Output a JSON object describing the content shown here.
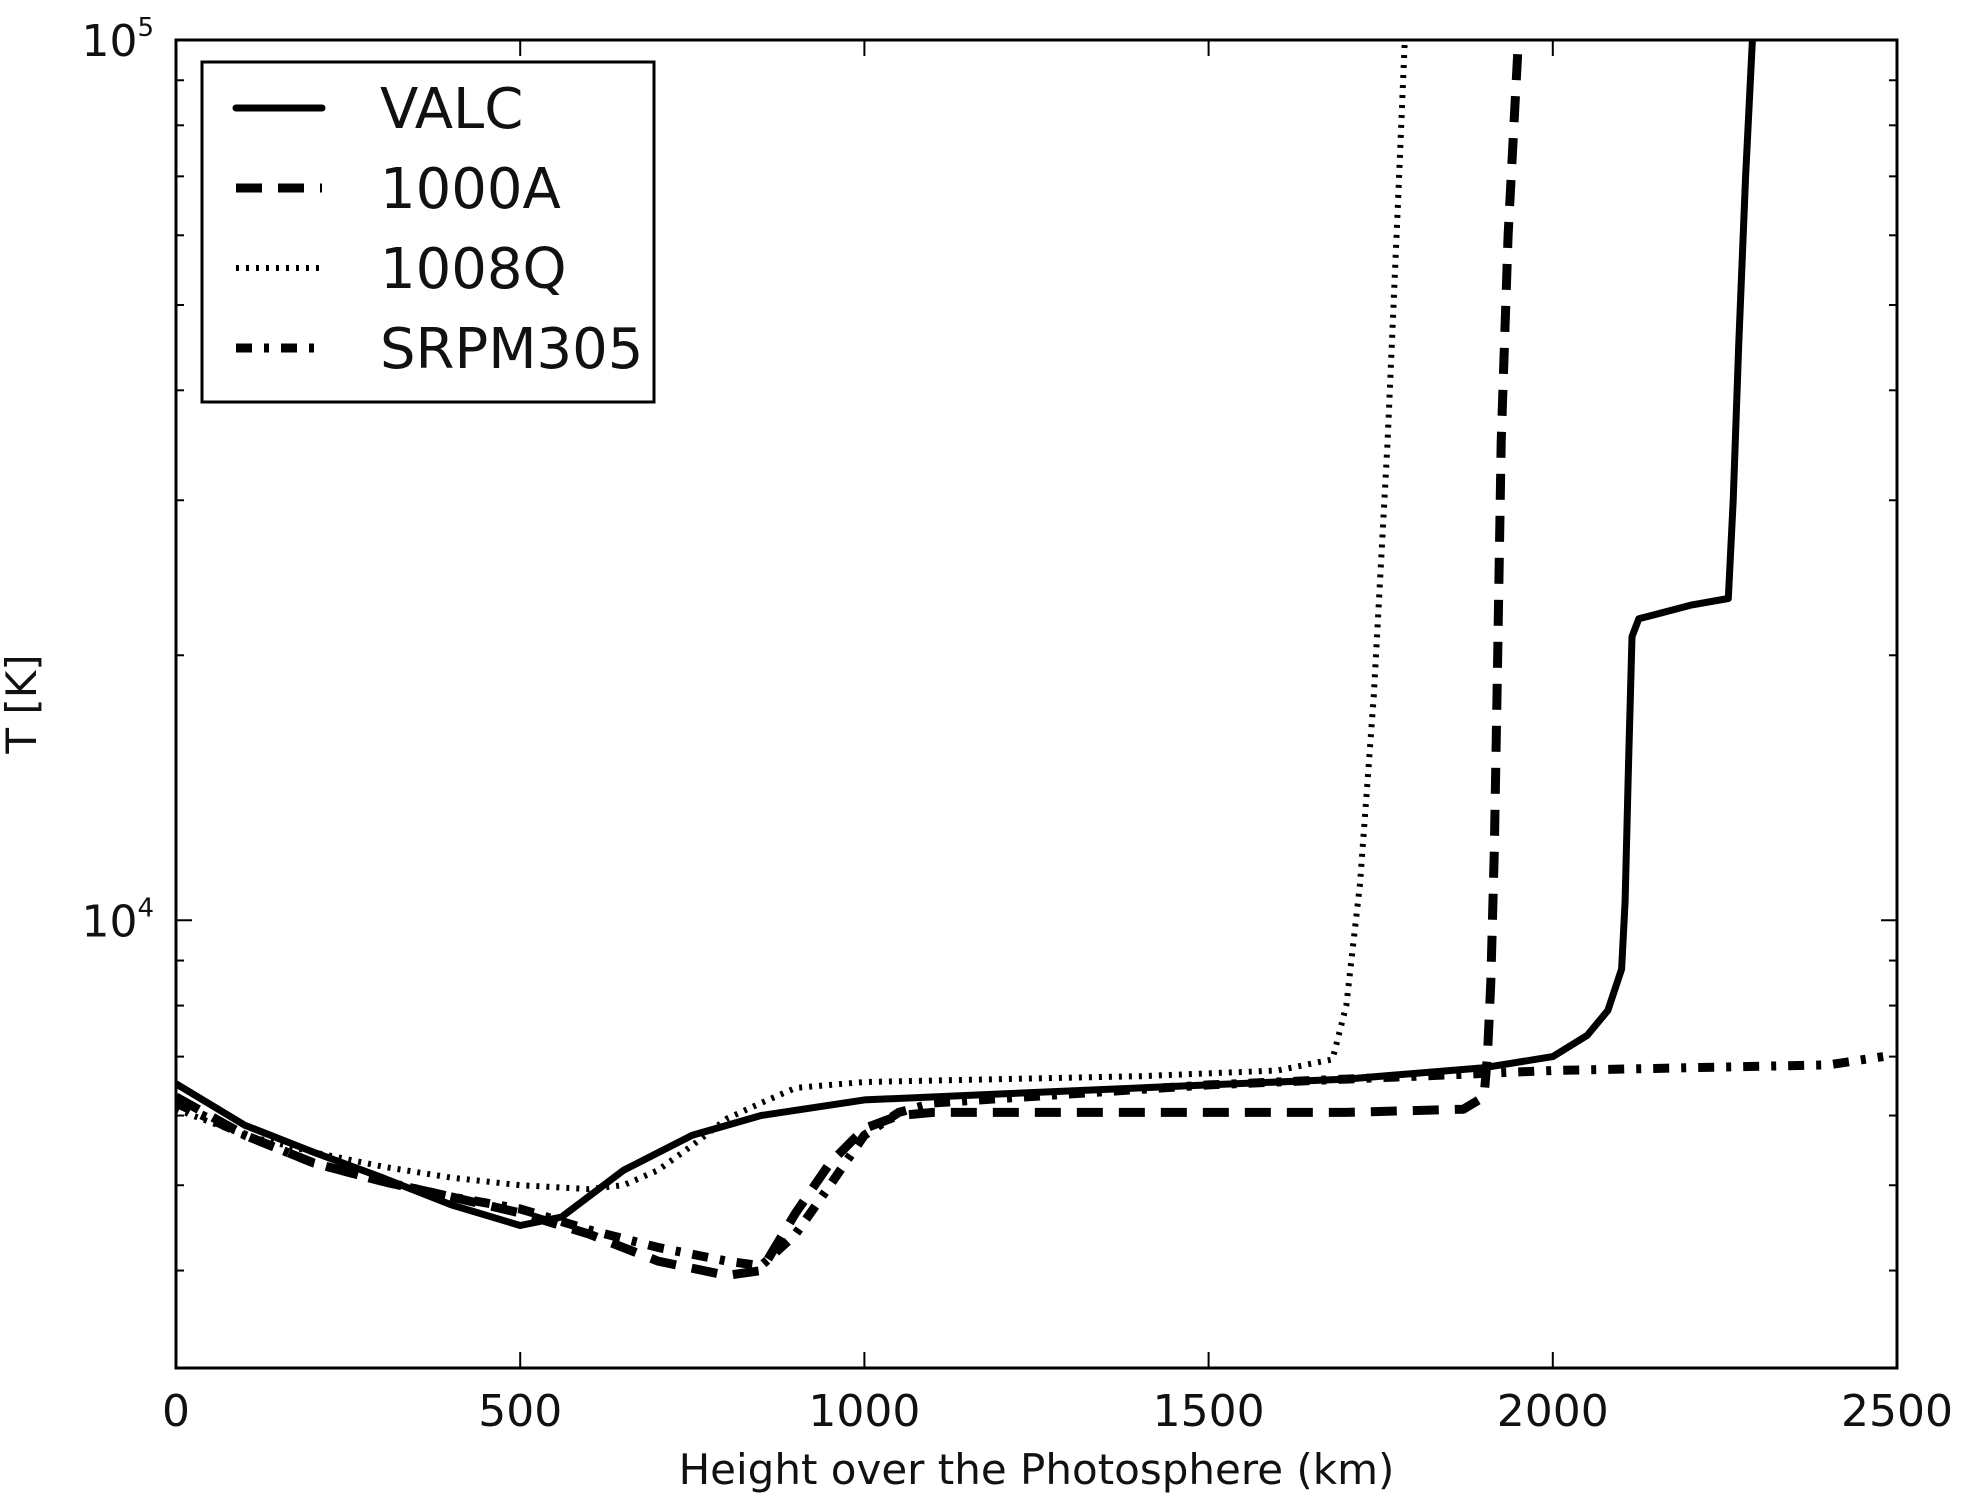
{
  "chart_data": {
    "type": "line",
    "title": "",
    "xlabel": "Height over the Photosphere (km)",
    "ylabel": "T [K]",
    "xlim": [
      0,
      2500
    ],
    "ylim": [
      3100,
      100000
    ],
    "yscale": "log",
    "x_ticks": [
      0,
      500,
      1000,
      1500,
      2000,
      2500
    ],
    "x_tick_labels": [
      "0",
      "500",
      "1000",
      "1500",
      "2000",
      "2500"
    ],
    "y_ticks": [
      {
        "value": 10000,
        "base": "10",
        "exp": "4"
      },
      {
        "value": 100000,
        "base": "10",
        "exp": "5"
      }
    ],
    "grid": false,
    "legend_position": "top-left",
    "series": [
      {
        "name": "VALC",
        "style": "solid",
        "points": [
          [
            0,
            6520
          ],
          [
            100,
            5850
          ],
          [
            200,
            5450
          ],
          [
            300,
            5100
          ],
          [
            400,
            4750
          ],
          [
            500,
            4500
          ],
          [
            560,
            4600
          ],
          [
            650,
            5200
          ],
          [
            750,
            5700
          ],
          [
            850,
            6000
          ],
          [
            1000,
            6250
          ],
          [
            1200,
            6350
          ],
          [
            1500,
            6500
          ],
          [
            1700,
            6600
          ],
          [
            1900,
            6800
          ],
          [
            2000,
            7000
          ],
          [
            2050,
            7400
          ],
          [
            2080,
            7900
          ],
          [
            2100,
            8800
          ],
          [
            2105,
            10500
          ],
          [
            2110,
            15000
          ],
          [
            2115,
            21000
          ],
          [
            2125,
            22000
          ],
          [
            2200,
            22800
          ],
          [
            2255,
            23200
          ],
          [
            2262,
            30000
          ],
          [
            2270,
            45000
          ],
          [
            2280,
            70000
          ],
          [
            2290,
            100000
          ]
        ]
      },
      {
        "name": "1000A",
        "style": "dashed",
        "points": [
          [
            0,
            6300
          ],
          [
            100,
            5700
          ],
          [
            200,
            5300
          ],
          [
            300,
            5050
          ],
          [
            400,
            4850
          ],
          [
            500,
            4650
          ],
          [
            600,
            4400
          ],
          [
            700,
            4100
          ],
          [
            800,
            3950
          ],
          [
            850,
            4000
          ],
          [
            900,
            4650
          ],
          [
            950,
            5300
          ],
          [
            1000,
            5800
          ],
          [
            1050,
            6000
          ],
          [
            1100,
            6050
          ],
          [
            1300,
            6050
          ],
          [
            1500,
            6050
          ],
          [
            1700,
            6050
          ],
          [
            1870,
            6100
          ],
          [
            1900,
            6300
          ],
          [
            1905,
            7000
          ],
          [
            1910,
            8500
          ],
          [
            1915,
            12000
          ],
          [
            1920,
            20000
          ],
          [
            1925,
            35000
          ],
          [
            1935,
            60000
          ],
          [
            1950,
            100000
          ]
        ]
      },
      {
        "name": "1008Q",
        "style": "dotted",
        "points": [
          [
            0,
            6100
          ],
          [
            100,
            5700
          ],
          [
            200,
            5450
          ],
          [
            300,
            5250
          ],
          [
            400,
            5100
          ],
          [
            500,
            5000
          ],
          [
            600,
            4950
          ],
          [
            650,
            5000
          ],
          [
            700,
            5200
          ],
          [
            750,
            5550
          ],
          [
            800,
            5950
          ],
          [
            850,
            6200
          ],
          [
            900,
            6450
          ],
          [
            1000,
            6550
          ],
          [
            1200,
            6600
          ],
          [
            1400,
            6650
          ],
          [
            1600,
            6750
          ],
          [
            1680,
            6950
          ],
          [
            1700,
            8000
          ],
          [
            1720,
            11000
          ],
          [
            1740,
            18000
          ],
          [
            1760,
            35000
          ],
          [
            1775,
            65000
          ],
          [
            1785,
            100000
          ]
        ]
      },
      {
        "name": "SRPM305",
        "style": "dashdot",
        "points": [
          [
            0,
            6200
          ],
          [
            100,
            5700
          ],
          [
            200,
            5300
          ],
          [
            300,
            5050
          ],
          [
            400,
            4850
          ],
          [
            500,
            4700
          ],
          [
            600,
            4450
          ],
          [
            700,
            4250
          ],
          [
            800,
            4100
          ],
          [
            850,
            4050
          ],
          [
            900,
            4400
          ],
          [
            950,
            5000
          ],
          [
            1000,
            5700
          ],
          [
            1050,
            6050
          ],
          [
            1100,
            6200
          ],
          [
            1300,
            6350
          ],
          [
            1500,
            6500
          ],
          [
            1700,
            6600
          ],
          [
            1900,
            6700
          ],
          [
            2000,
            6750
          ],
          [
            2200,
            6800
          ],
          [
            2400,
            6850
          ],
          [
            2480,
            7000
          ]
        ]
      }
    ]
  }
}
